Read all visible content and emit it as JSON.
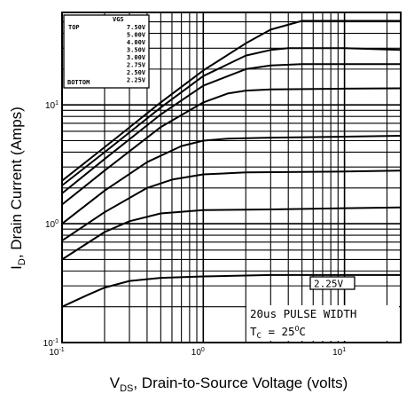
{
  "chart_data": {
    "type": "line",
    "xlabel": {
      "main": "V",
      "sub": "DS",
      "rest": ", Drain-to-Source Voltage (volts)"
    },
    "ylabel": {
      "main": "I",
      "sub": "D",
      "rest": ", Drain Current (Amps)"
    },
    "x_scale": "log",
    "y_scale": "log",
    "xlim": [
      0.1,
      25
    ],
    "ylim": [
      0.1,
      60
    ],
    "grid": true,
    "x_ticks": [
      {
        "value": 0.1,
        "base": "10",
        "exp": "-1"
      },
      {
        "value": 1,
        "base": "10",
        "exp": "0"
      },
      {
        "value": 10,
        "base": "10",
        "exp": "1"
      }
    ],
    "y_ticks": [
      {
        "value": 0.1,
        "base": "10",
        "exp": "-1"
      },
      {
        "value": 1,
        "base": "10",
        "exp": "0"
      },
      {
        "value": 10,
        "base": "10",
        "exp": "1"
      }
    ],
    "legend": {
      "placement": "top-left",
      "header": "VGS",
      "top_label": "TOP",
      "bottom_label": "BOTTOM",
      "entries": [
        "7.50V",
        "5.00V",
        "4.00V",
        "3.50V",
        "3.00V",
        "2.75V",
        "2.50V",
        "2.25V"
      ]
    },
    "curve_label": "2.25V",
    "annotation": {
      "line1": "20us PULSE WIDTH",
      "line2_main": "T",
      "line2_sub": "C",
      "line2_rest": " = 25",
      "line2_sup": "O",
      "line2_end": "C"
    },
    "series": [
      {
        "name": "7.50V",
        "x": [
          0.1,
          0.2,
          0.5,
          1,
          2,
          3,
          5,
          8,
          10,
          15,
          25
        ],
        "y": [
          2.3,
          4.4,
          10.5,
          19.5,
          33,
          43,
          51,
          51,
          51,
          51,
          51
        ]
      },
      {
        "name": "5.00V",
        "x": [
          0.1,
          0.2,
          0.5,
          1,
          2,
          3,
          4,
          6,
          10,
          25
        ],
        "y": [
          2.1,
          4.0,
          9.5,
          17.5,
          26,
          29,
          30,
          30,
          30,
          29
        ]
      },
      {
        "name": "4.00V",
        "x": [
          0.1,
          0.2,
          0.5,
          1,
          2,
          3,
          5,
          10,
          25
        ],
        "y": [
          1.8,
          3.5,
          8.3,
          14.5,
          20,
          21.5,
          22,
          22,
          22
        ]
      },
      {
        "name": "3.50V",
        "x": [
          0.1,
          0.2,
          0.5,
          1,
          1.5,
          2,
          3,
          10,
          25
        ],
        "y": [
          1.45,
          2.8,
          6.5,
          10.5,
          12.5,
          13.2,
          13.5,
          13.7,
          13.8
        ]
      },
      {
        "name": "3.00V",
        "x": [
          0.1,
          0.2,
          0.4,
          0.7,
          1,
          1.5,
          3,
          10,
          25
        ],
        "y": [
          1.0,
          1.9,
          3.3,
          4.5,
          5.0,
          5.2,
          5.3,
          5.4,
          5.5
        ]
      },
      {
        "name": "2.75V",
        "x": [
          0.1,
          0.2,
          0.4,
          0.6,
          1,
          2,
          10,
          25
        ],
        "y": [
          0.72,
          1.25,
          2.0,
          2.35,
          2.6,
          2.7,
          2.75,
          2.8
        ]
      },
      {
        "name": "2.50V",
        "x": [
          0.1,
          0.2,
          0.3,
          0.5,
          1,
          3,
          10,
          25
        ],
        "y": [
          0.5,
          0.85,
          1.05,
          1.22,
          1.3,
          1.32,
          1.35,
          1.37
        ]
      },
      {
        "name": "2.25V",
        "x": [
          0.1,
          0.15,
          0.2,
          0.3,
          0.5,
          1,
          3,
          10,
          25
        ],
        "y": [
          0.2,
          0.25,
          0.29,
          0.33,
          0.35,
          0.36,
          0.37,
          0.37,
          0.37
        ]
      }
    ]
  }
}
